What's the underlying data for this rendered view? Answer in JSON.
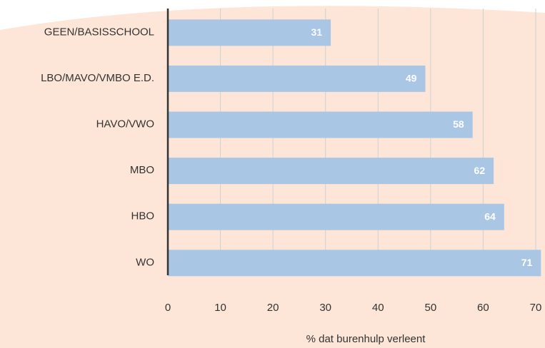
{
  "chart_data": {
    "type": "barh",
    "categories": [
      "GEEN/BASISSCHOOL",
      "LBO/MAVO/VMBO E.D.",
      "HAVO/VWO",
      "MBO",
      "HBO",
      "WO"
    ],
    "values": [
      31,
      49,
      58,
      62,
      64,
      71
    ],
    "color": "#a9c7e4",
    "xlabel": "% dat burenhulp verleent",
    "xlim": [
      0,
      71.5
    ],
    "xticks": [
      0,
      10,
      20,
      30,
      40,
      50,
      60,
      70
    ],
    "grid": true
  }
}
